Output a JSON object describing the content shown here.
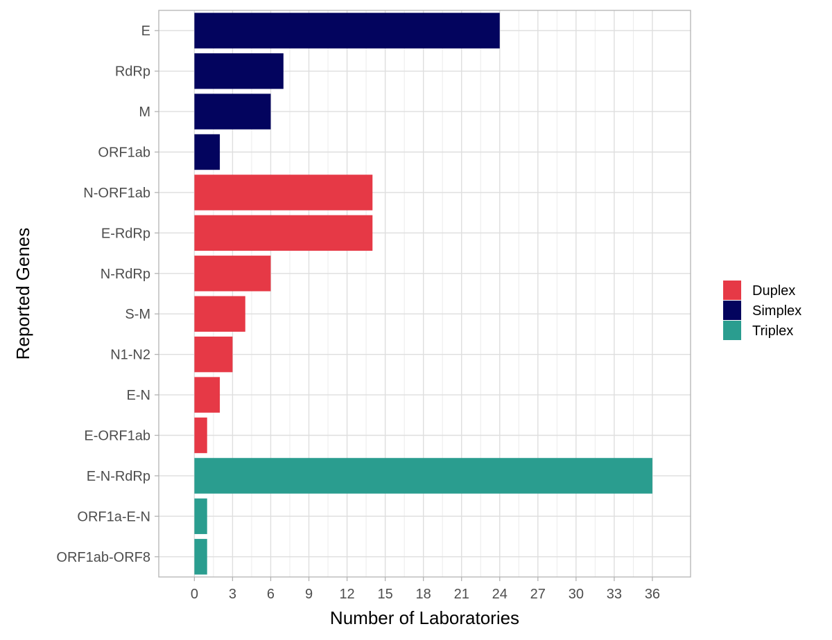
{
  "chart_data": {
    "type": "bar",
    "orientation": "horizontal",
    "xlabel": "Number of Laboratories",
    "ylabel": "Reported Genes",
    "xlim": [
      -2.8,
      39
    ],
    "x_ticks": [
      "0",
      "3",
      "6",
      "9",
      "12",
      "15",
      "18",
      "21",
      "24",
      "27",
      "30",
      "33",
      "36"
    ],
    "grid": true,
    "legend_position": "right",
    "categories": [
      "E",
      "RdRp",
      "M",
      "ORF1ab",
      "N-ORF1ab",
      "E-RdRp",
      "N-RdRp",
      "S-M",
      "N1-N2",
      "E-N",
      "E-ORF1ab",
      "E-N-RdRp",
      "ORF1a-E-N",
      "ORF1ab-ORF8"
    ],
    "values": [
      24,
      7,
      6,
      2,
      14,
      14,
      6,
      4,
      3,
      2,
      1,
      36,
      1,
      1
    ],
    "groups": [
      "Simplex",
      "Simplex",
      "Simplex",
      "Simplex",
      "Duplex",
      "Duplex",
      "Duplex",
      "Duplex",
      "Duplex",
      "Duplex",
      "Duplex",
      "Triplex",
      "Triplex",
      "Triplex"
    ],
    "legend": [
      {
        "name": "Duplex",
        "color": "#E63946"
      },
      {
        "name": "Simplex",
        "color": "#03045E"
      },
      {
        "name": "Triplex",
        "color": "#2A9D8F"
      }
    ]
  }
}
